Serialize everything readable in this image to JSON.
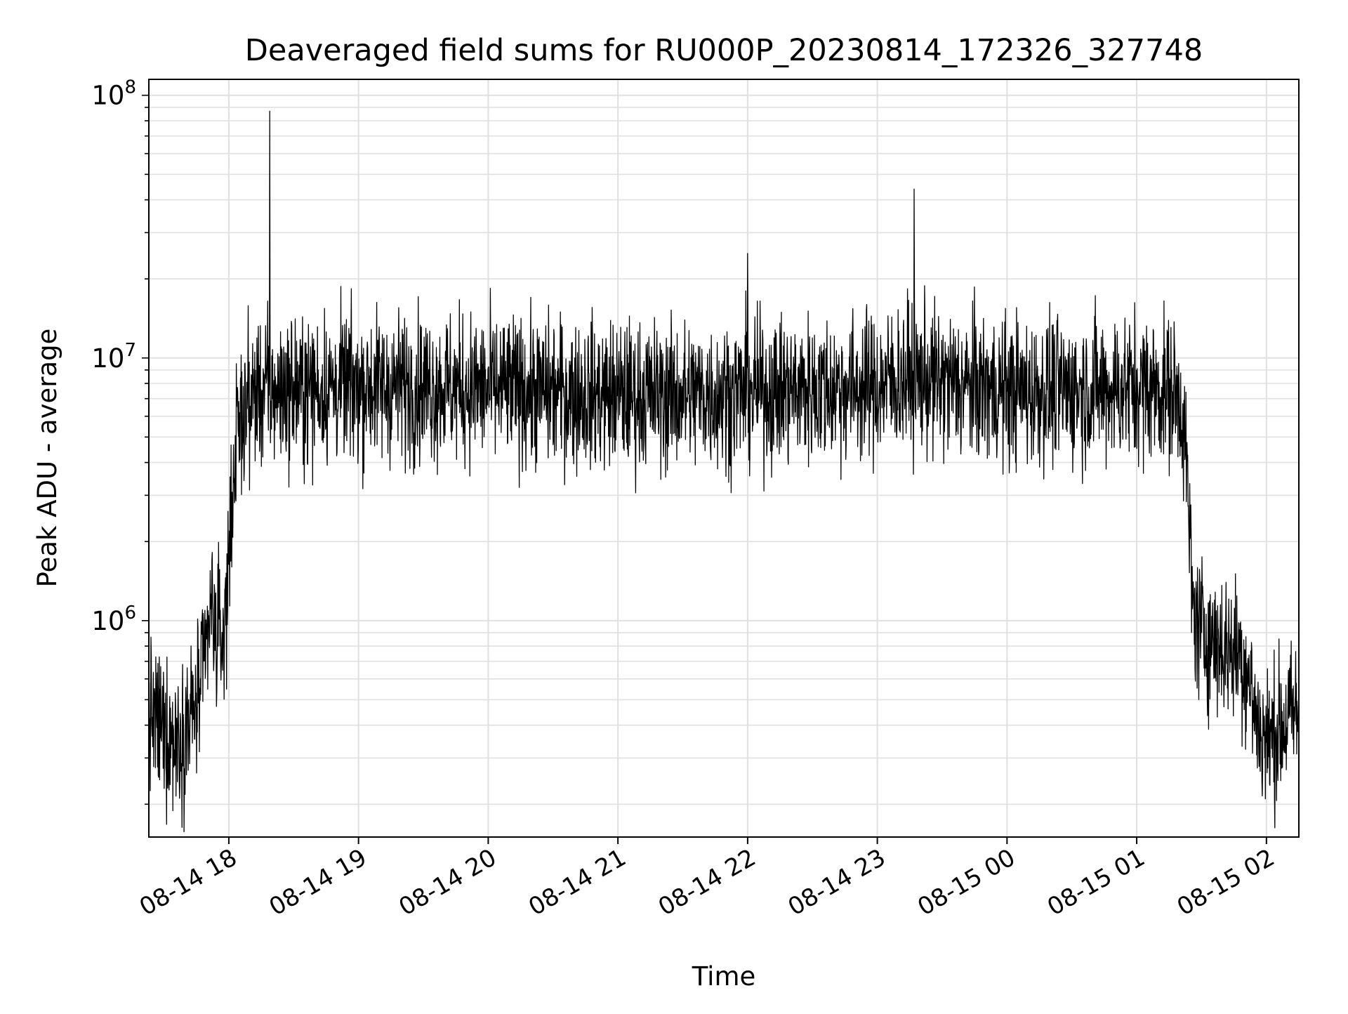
{
  "chart_data": {
    "type": "line",
    "title": "Deaveraged field sums for RU000P_20230814_172326_327748",
    "xlabel": "Time",
    "ylabel": "Peak ADU - average",
    "yscale": "log",
    "ylim": [
      150000,
      115000000
    ],
    "xlim": [
      "2023-08-14 17:23",
      "2023-08-15 02:15"
    ],
    "grid": true,
    "line_color": "#000000",
    "grid_color": "#e0e0e0",
    "x_ticks": [
      {
        "value": "2023-08-14 18:00",
        "label": "08-14 18"
      },
      {
        "value": "2023-08-14 19:00",
        "label": "08-14 19"
      },
      {
        "value": "2023-08-14 20:00",
        "label": "08-14 20"
      },
      {
        "value": "2023-08-14 21:00",
        "label": "08-14 21"
      },
      {
        "value": "2023-08-14 22:00",
        "label": "08-14 22"
      },
      {
        "value": "2023-08-14 23:00",
        "label": "08-14 23"
      },
      {
        "value": "2023-08-15 00:00",
        "label": "08-15 00"
      },
      {
        "value": "2023-08-15 01:00",
        "label": "08-15 01"
      },
      {
        "value": "2023-08-15 02:00",
        "label": "08-15 02"
      }
    ],
    "y_ticks": [
      {
        "value": 1000000,
        "base": "10",
        "exp": "6"
      },
      {
        "value": 10000000,
        "base": "10",
        "exp": "7"
      },
      {
        "value": 100000000,
        "base": "10",
        "exp": "8"
      }
    ],
    "series": [
      {
        "x": [
          "2023-08-14 17:23",
          "2023-08-14 17:27",
          "2023-08-14 17:31",
          "2023-08-14 17:35",
          "2023-08-14 17:40",
          "2023-08-14 17:44",
          "2023-08-14 17:48",
          "2023-08-14 17:50",
          "2023-08-14 17:52",
          "2023-08-14 17:54",
          "2023-08-14 17:56",
          "2023-08-14 17:58",
          "2023-08-14 18:00",
          "2023-08-14 18:02",
          "2023-08-14 18:04",
          "2023-08-14 18:06",
          "2023-08-14 18:08",
          "2023-08-14 18:10",
          "2023-08-14 18:15",
          "2023-08-14 18:20",
          "2023-08-14 18:30",
          "2023-08-14 18:40",
          "2023-08-14 19:00",
          "2023-08-14 19:30",
          "2023-08-14 20:00",
          "2023-08-14 20:30",
          "2023-08-14 21:00",
          "2023-08-14 21:30",
          "2023-08-14 22:00",
          "2023-08-14 22:30",
          "2023-08-14 23:00",
          "2023-08-14 23:15",
          "2023-08-14 23:30",
          "2023-08-15 00:00",
          "2023-08-15 00:30",
          "2023-08-15 01:00",
          "2023-08-15 01:15",
          "2023-08-15 01:20",
          "2023-08-15 01:22",
          "2023-08-15 01:24",
          "2023-08-15 01:26",
          "2023-08-15 01:30",
          "2023-08-15 01:40",
          "2023-08-15 01:48",
          "2023-08-15 01:52",
          "2023-08-15 01:56",
          "2023-08-15 02:00",
          "2023-08-15 02:05",
          "2023-08-15 02:10",
          "2023-08-15 02:15"
        ],
        "values": [
          450000,
          400000,
          380000,
          350000,
          400000,
          450000,
          600000,
          850000,
          1100000,
          900000,
          850000,
          900000,
          1800000,
          3500000,
          5000000,
          6000000,
          6500000,
          7000000,
          7500000,
          7500000,
          7500000,
          7600000,
          7800000,
          7800000,
          7600000,
          7400000,
          7200000,
          7200000,
          7400000,
          7600000,
          7800000,
          8500000,
          8000000,
          7500000,
          7500000,
          7800000,
          7500000,
          7000000,
          5500000,
          2500000,
          1100000,
          900000,
          800000,
          750000,
          600000,
          400000,
          350000,
          380000,
          420000,
          450000
        ]
      }
    ],
    "spikes": [
      {
        "x": "2023-08-14 18:19",
        "y": 87000000
      },
      {
        "x": "2023-08-14 23:17",
        "y": 44000000
      },
      {
        "x": "2023-08-14 22:00",
        "y": 25000000
      }
    ]
  }
}
